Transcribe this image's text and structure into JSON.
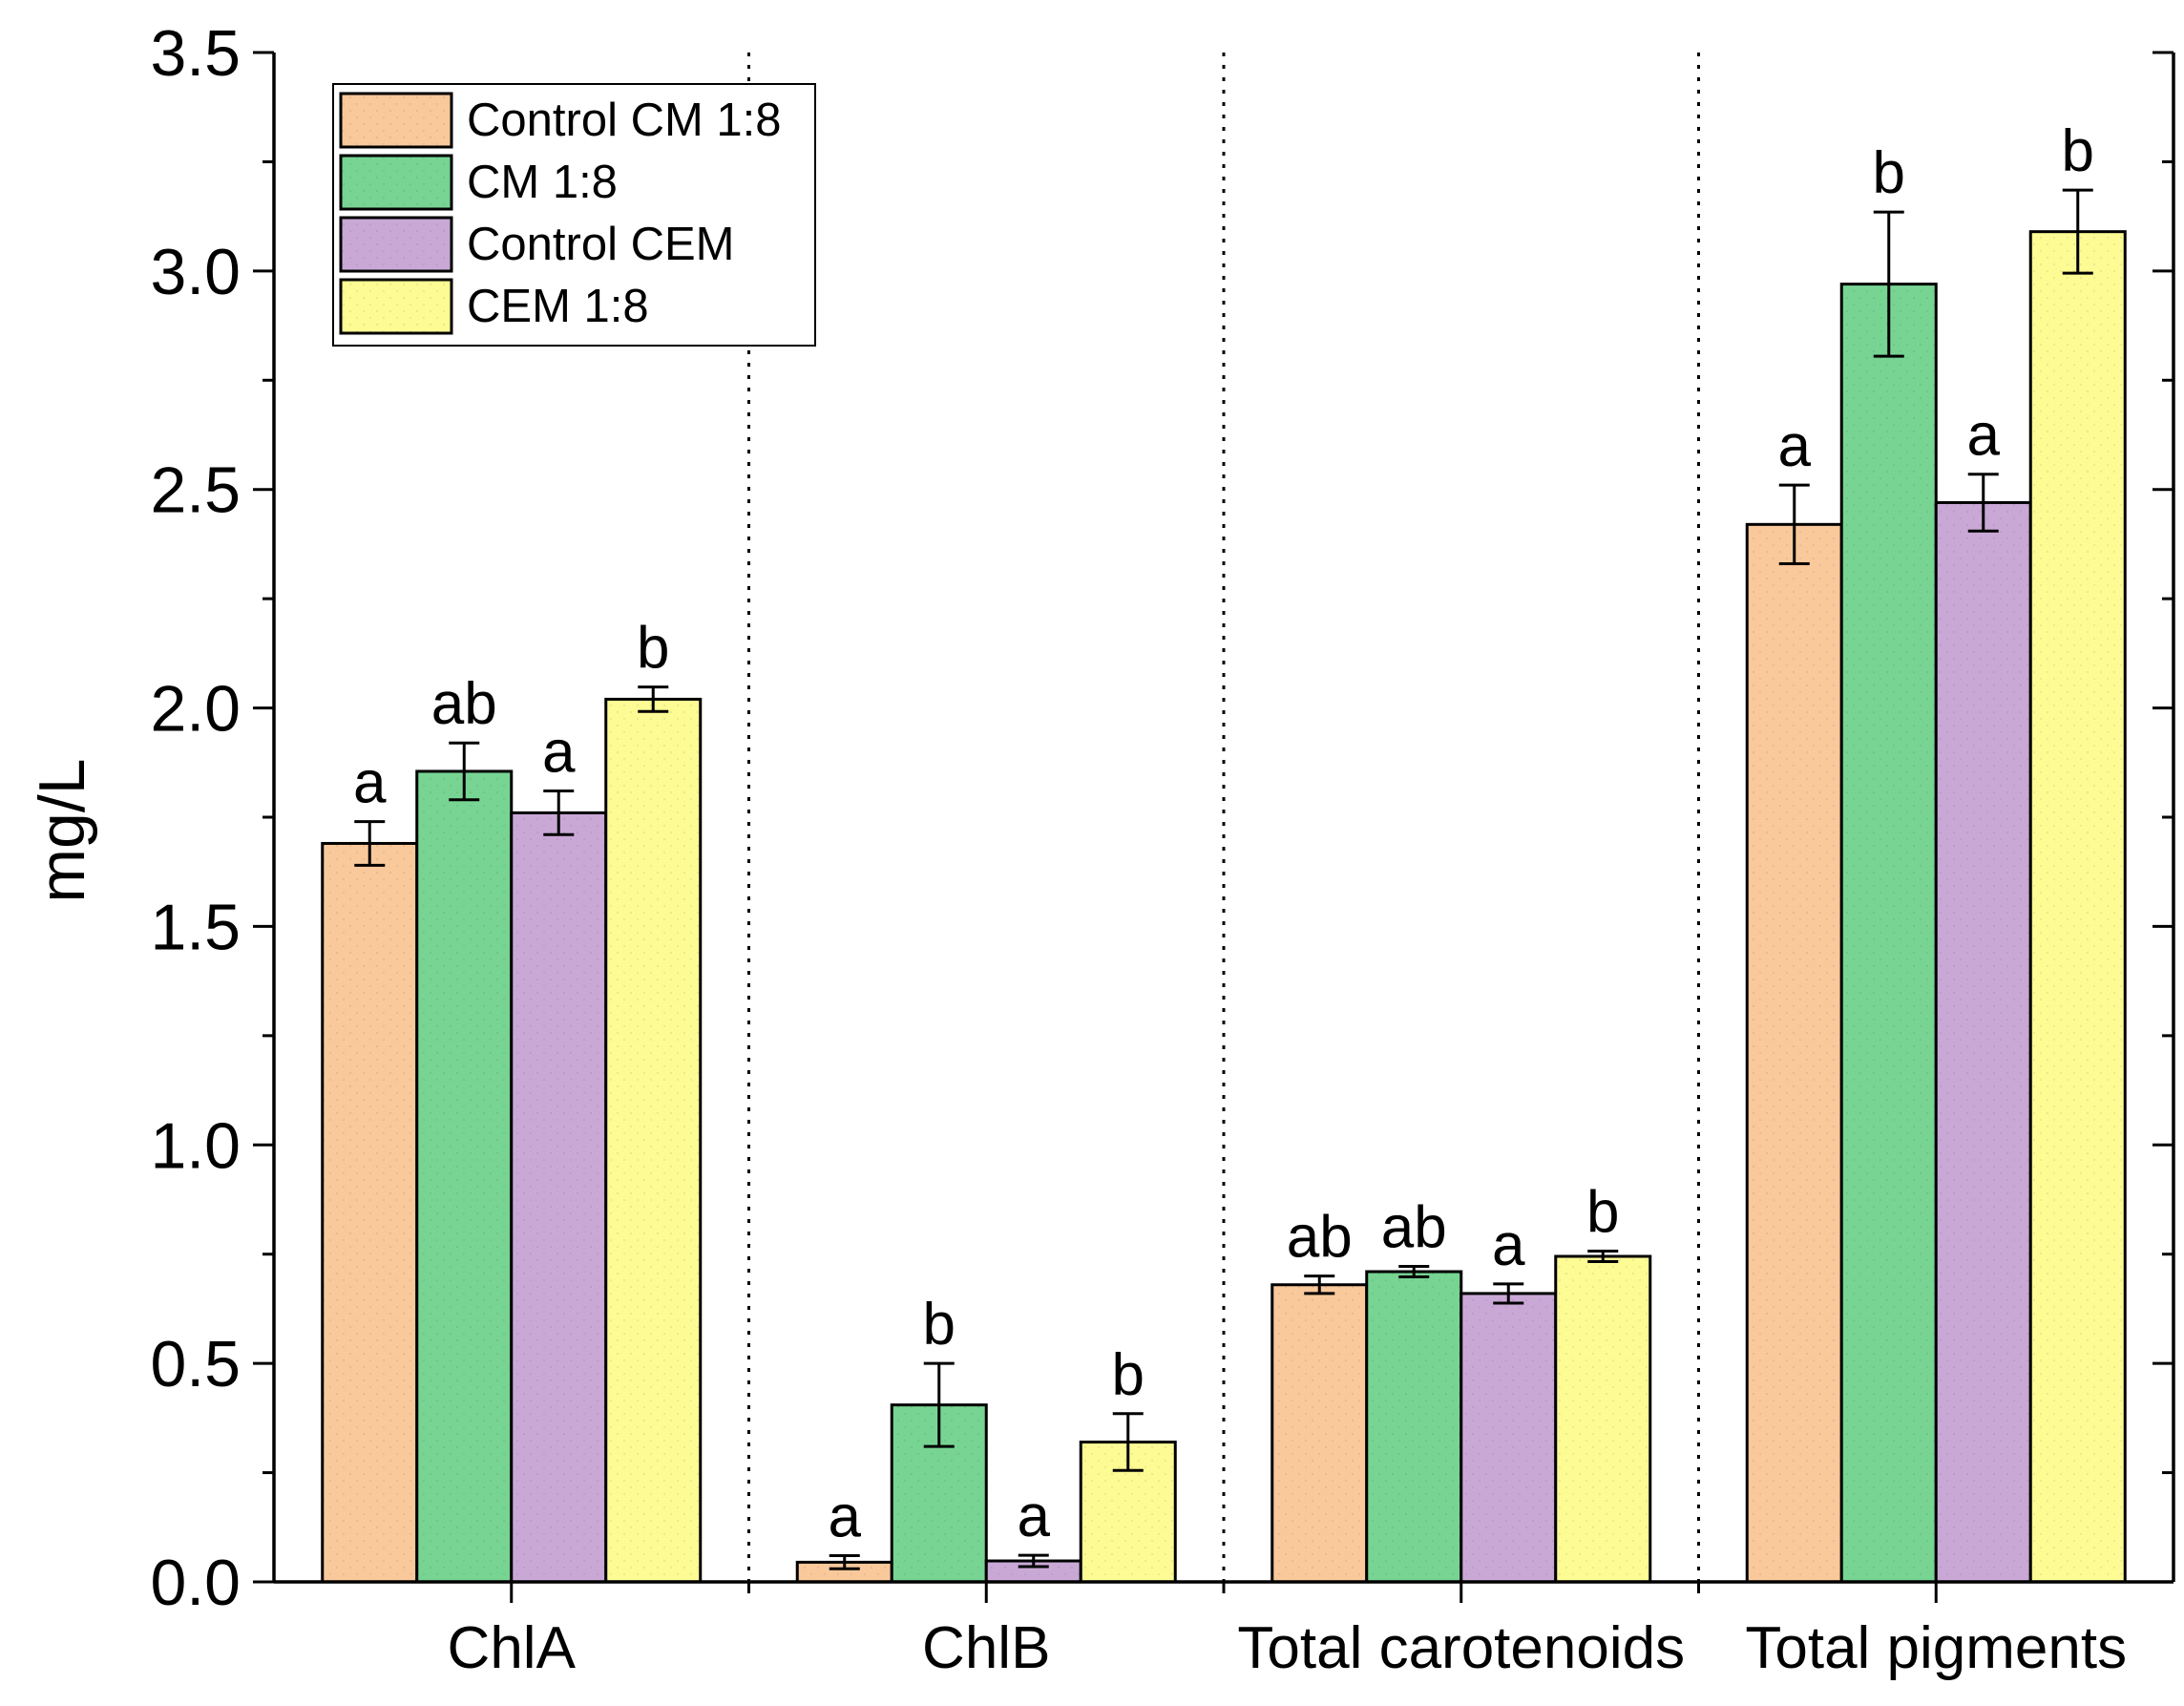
{
  "chart_data": {
    "type": "bar",
    "ylabel": "mg/L",
    "xlabel": "",
    "ylim": [
      0,
      3.5
    ],
    "yticks": [
      "0.0",
      "0.5",
      "1.0",
      "1.5",
      "2.0",
      "2.5",
      "3.0",
      "3.5"
    ],
    "ytick_values": [
      0,
      0.5,
      1.0,
      1.5,
      2.0,
      2.5,
      3.0,
      3.5
    ],
    "categories": [
      "ChlA",
      "ChlB",
      "Total carotenoids",
      "Total pigments"
    ],
    "series": [
      {
        "name": "Control CM 1:8",
        "color": "#F9C89B",
        "values": [
          1.69,
          0.045,
          0.68,
          2.42
        ],
        "errors": [
          0.05,
          0.015,
          0.02,
          0.09
        ],
        "labels": [
          "a",
          "a",
          "ab",
          "a"
        ]
      },
      {
        "name": "CM 1:8",
        "color": "#77D493",
        "values": [
          1.855,
          0.405,
          0.71,
          2.97
        ],
        "errors": [
          0.065,
          0.095,
          0.012,
          0.165
        ],
        "labels": [
          "ab",
          "b",
          "ab",
          "b"
        ]
      },
      {
        "name": "Control CEM",
        "color": "#C9A8D6",
        "values": [
          1.76,
          0.048,
          0.66,
          2.47
        ],
        "errors": [
          0.05,
          0.013,
          0.022,
          0.065
        ],
        "labels": [
          "a",
          "a",
          "a",
          "a"
        ]
      },
      {
        "name": "CEM 1:8",
        "color": "#FDFB94",
        "values": [
          2.02,
          0.32,
          0.745,
          3.09
        ],
        "errors": [
          0.028,
          0.065,
          0.012,
          0.095
        ],
        "labels": [
          "b",
          "b",
          "b",
          "b"
        ]
      }
    ],
    "grid": false,
    "legend_position": "top-left",
    "category_separators": "dotted"
  }
}
